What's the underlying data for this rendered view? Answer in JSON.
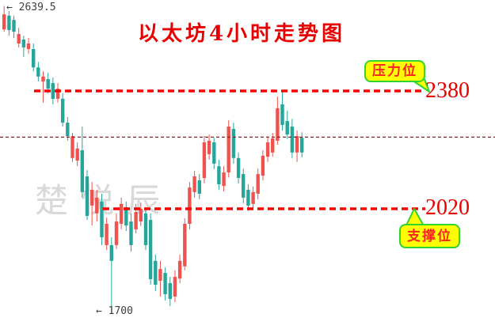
{
  "title": "以太坊4小时走势图",
  "watermark": "楚悦辰",
  "annotations": {
    "high_label": "← 2639.5",
    "low_label": "← 1700",
    "resistance_tag": "压力位",
    "support_tag": "支撑位",
    "resistance_value": "2380",
    "support_value": "2020"
  },
  "colors": {
    "up_candle": "#ef5350",
    "down_candle": "#26a69a",
    "level_line": "#fe0000",
    "current_price_line": "#8b2323",
    "accent_red": "#e80000",
    "tag_background": "#ffff00",
    "tag_border": "#2fd42f",
    "watermark_gray": "#d8d8d8"
  },
  "chart_data": {
    "type": "candlestick",
    "title": "以太坊4小时走势图",
    "timeframe": "4小时",
    "levels": {
      "resistance": 2380,
      "support": 2020,
      "current_price": 2239,
      "session_high": 2639.5,
      "session_low": 1700
    },
    "grid": false,
    "y_range": [
      1690,
      2660
    ],
    "candles_ohlc": [
      [
        2568,
        2639.5,
        2561,
        2614
      ],
      [
        2610,
        2624,
        2549,
        2566
      ],
      [
        2597,
        2610,
        2542,
        2561
      ],
      [
        2525,
        2573,
        2513,
        2554
      ],
      [
        2537,
        2549,
        2484,
        2513
      ],
      [
        2508,
        2542,
        2494,
        2525
      ],
      [
        2508,
        2525,
        2440,
        2452
      ],
      [
        2452,
        2469,
        2409,
        2424
      ],
      [
        2409,
        2440,
        2344,
        2424
      ],
      [
        2416,
        2436,
        2373,
        2387
      ],
      [
        2404,
        2421,
        2339,
        2356
      ],
      [
        2356,
        2404,
        2344,
        2387
      ],
      [
        2356,
        2373,
        2271,
        2283
      ],
      [
        2283,
        2300,
        2228,
        2242
      ],
      [
        2175,
        2252,
        2163,
        2242
      ],
      [
        2167,
        2223,
        2150,
        2204
      ],
      [
        2199,
        2271,
        2054,
        2071
      ],
      [
        2119,
        2138,
        1986,
        1998
      ],
      [
        2030,
        2102,
        1969,
        2078
      ],
      [
        2006,
        2078,
        1981,
        2054
      ],
      [
        2042,
        2066,
        1909,
        1933
      ],
      [
        1909,
        1993,
        1894,
        1974
      ],
      [
        1909,
        1933,
        1700,
        1861
      ],
      [
        1909,
        2006,
        1897,
        1981
      ],
      [
        1974,
        2054,
        1957,
        2035
      ],
      [
        2025,
        2042,
        1952,
        1969
      ],
      [
        1981,
        2006,
        1889,
        1909
      ],
      [
        1957,
        2035,
        1945,
        2010
      ],
      [
        1981,
        2039,
        1967,
        2020
      ],
      [
        2006,
        2025,
        1894,
        1909
      ],
      [
        1986,
        2006,
        1788,
        1805
      ],
      [
        1861,
        1880,
        1769,
        1788
      ],
      [
        1800,
        1861,
        1752,
        1836
      ],
      [
        1824,
        1841,
        1740,
        1759
      ],
      [
        1793,
        1812,
        1723,
        1745
      ],
      [
        1752,
        1832,
        1735,
        1812
      ],
      [
        1807,
        1880,
        1793,
        1861
      ],
      [
        1844,
        1991,
        1832,
        1974
      ],
      [
        1974,
        2102,
        1957,
        2085
      ],
      [
        2071,
        2136,
        2054,
        2119
      ],
      [
        2107,
        2126,
        2049,
        2066
      ],
      [
        2114,
        2242,
        2097,
        2223
      ],
      [
        2187,
        2247,
        2170,
        2228
      ],
      [
        2223,
        2237,
        2141,
        2158
      ],
      [
        2150,
        2170,
        2078,
        2095
      ],
      [
        2090,
        2150,
        2073,
        2131
      ],
      [
        2131,
        2291,
        2116,
        2271
      ],
      [
        2264,
        2283,
        2158,
        2175
      ],
      [
        2175,
        2192,
        2097,
        2114
      ],
      [
        2126,
        2143,
        2037,
        2054
      ],
      [
        2078,
        2095,
        2013,
        2030
      ],
      [
        2035,
        2088,
        2018,
        2071
      ],
      [
        2066,
        2143,
        2049,
        2126
      ],
      [
        2121,
        2199,
        2107,
        2182
      ],
      [
        2179,
        2240,
        2163,
        2223
      ],
      [
        2192,
        2252,
        2179,
        2235
      ],
      [
        2228,
        2363,
        2216,
        2327
      ],
      [
        2339,
        2380,
        2259,
        2276
      ],
      [
        2288,
        2320,
        2233,
        2247
      ],
      [
        2271,
        2295,
        2175,
        2192
      ],
      [
        2192,
        2259,
        2163,
        2242
      ],
      [
        2237,
        2254,
        2177,
        2192
      ]
    ]
  }
}
